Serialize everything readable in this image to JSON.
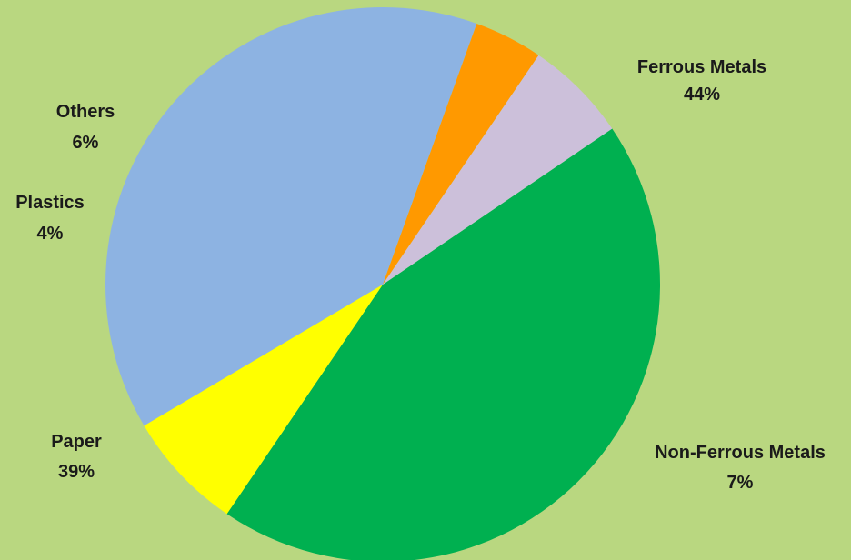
{
  "chart_data": {
    "type": "pie",
    "title": "",
    "background": "#b9d780",
    "slices": [
      {
        "label": "Ferrous Metals",
        "percent_label": "44%",
        "value": 44,
        "color": "#00b050"
      },
      {
        "label": "Non-Ferrous Metals",
        "percent_label": "7%",
        "value": 7,
        "color": "#ffff00"
      },
      {
        "label": "Paper",
        "percent_label": "39%",
        "value": 39,
        "color": "#8db3e2"
      },
      {
        "label": "Plastics",
        "percent_label": "4%",
        "value": 4,
        "color": "#ff9900"
      },
      {
        "label": "Others",
        "percent_label": "6%",
        "value": 6,
        "color": "#ccc0da"
      }
    ]
  }
}
